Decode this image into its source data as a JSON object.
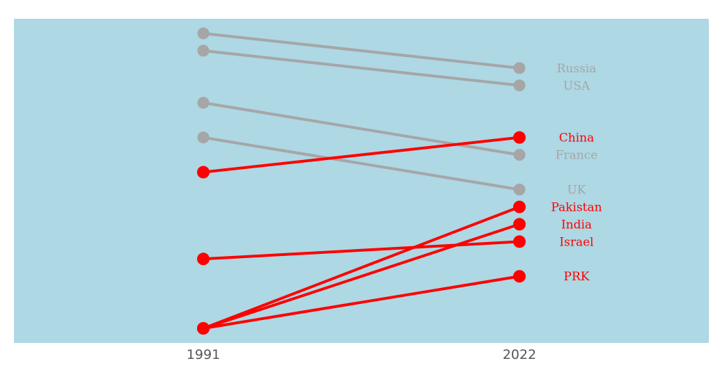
{
  "chart_data": {
    "type": "line",
    "chart_kind": "slope",
    "x": [
      "1991",
      "2022"
    ],
    "series": [
      {
        "name": "Russia",
        "values": [
          1,
          3
        ],
        "highlight": false
      },
      {
        "name": "USA",
        "values": [
          2,
          4
        ],
        "highlight": false
      },
      {
        "name": "China",
        "values": [
          9,
          7
        ],
        "highlight": true
      },
      {
        "name": "France",
        "values": [
          5,
          8
        ],
        "highlight": false
      },
      {
        "name": "UK",
        "values": [
          7,
          10
        ],
        "highlight": false
      },
      {
        "name": "Pakistan",
        "values": [
          18,
          11
        ],
        "highlight": true
      },
      {
        "name": "India",
        "values": [
          18,
          12
        ],
        "highlight": true
      },
      {
        "name": "Israel",
        "values": [
          14,
          13
        ],
        "highlight": true
      },
      {
        "name": "PRK",
        "values": [
          18,
          15
        ],
        "highlight": true
      }
    ],
    "y_axis_inverted": true,
    "ylim": [
      0,
      18.9
    ],
    "grid": false,
    "legend": "none",
    "colors": {
      "background": "#add8e4",
      "highlight": "#ff0000",
      "muted": "#a6a6a6",
      "tick_text": "#555555"
    }
  }
}
